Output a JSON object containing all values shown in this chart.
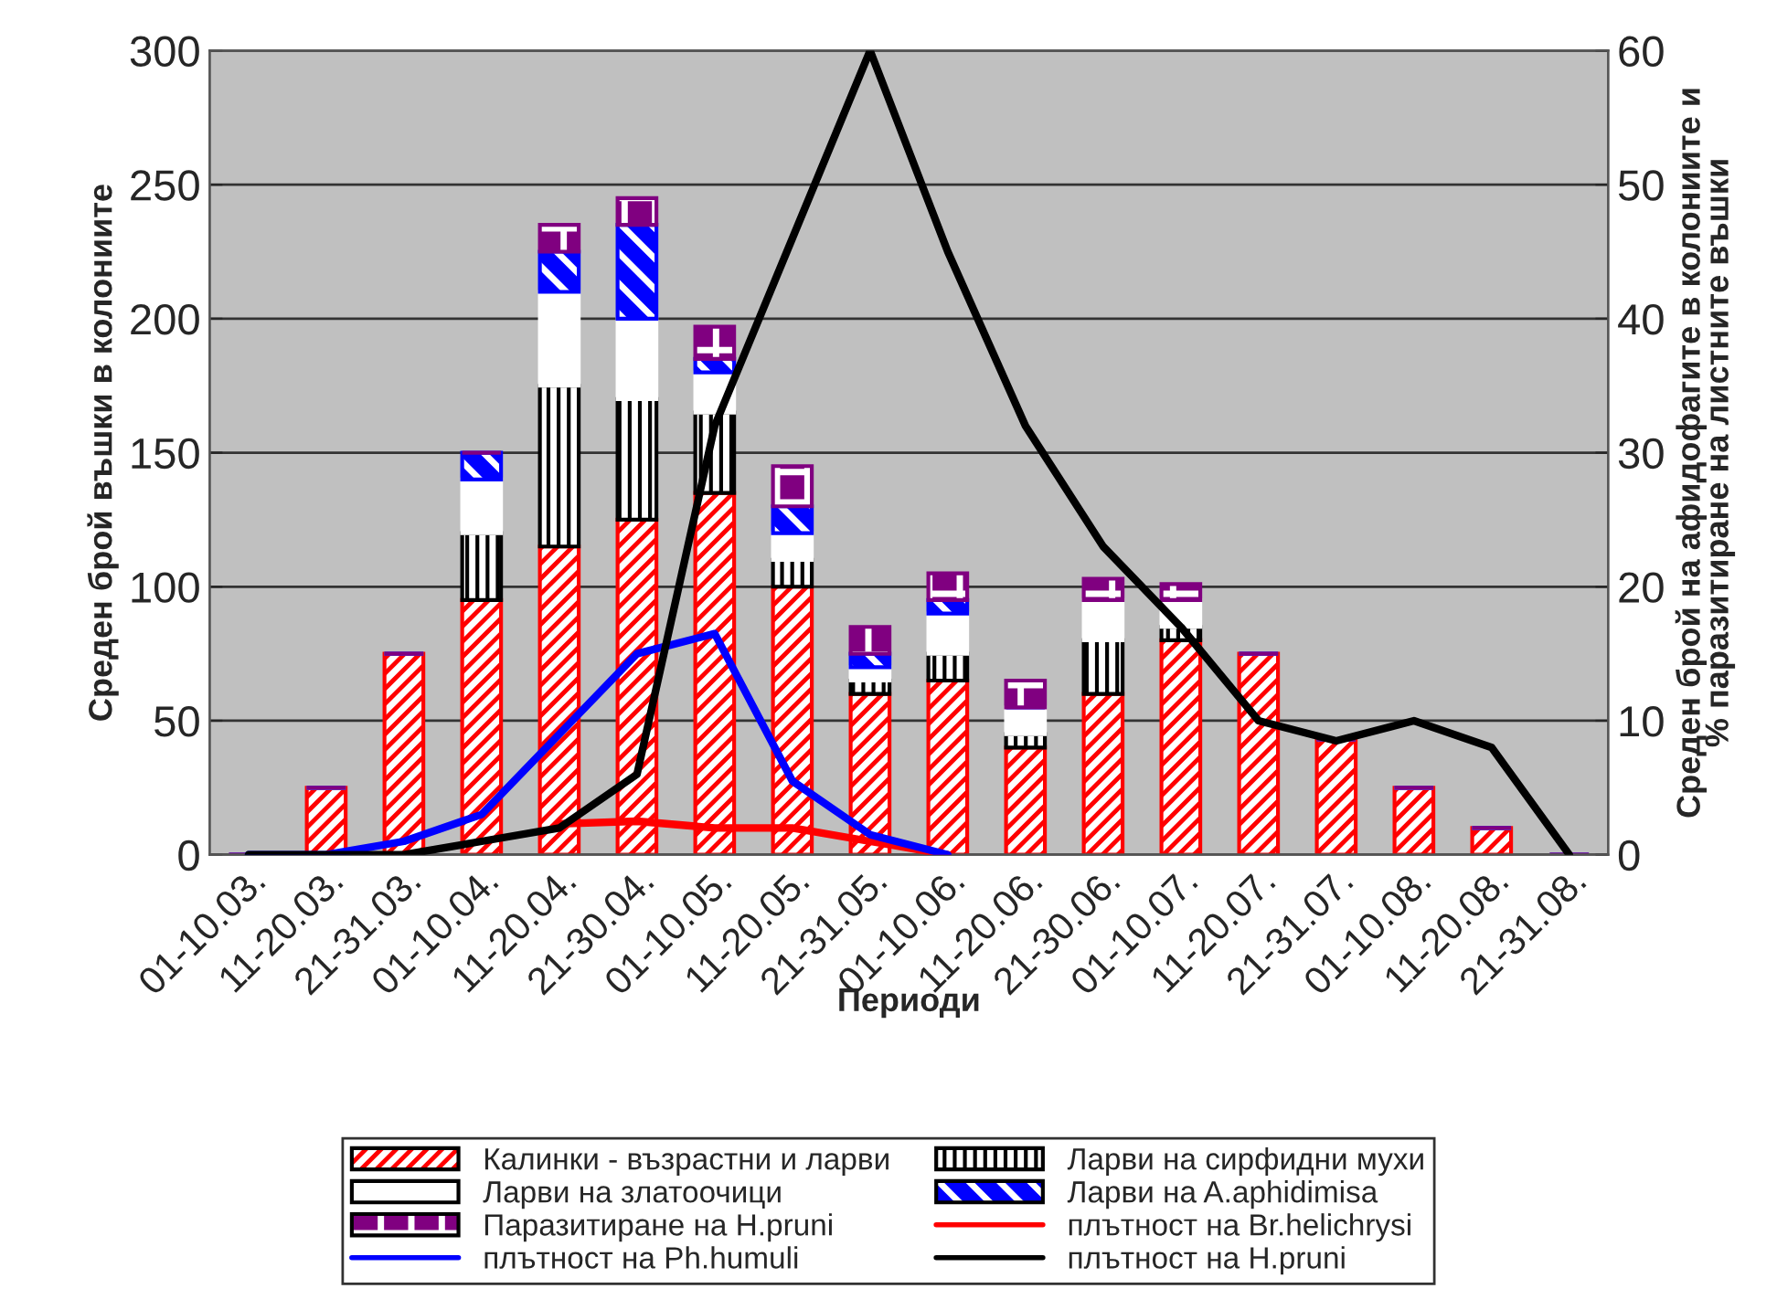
{
  "chart_data": {
    "type": "bar",
    "stacked": true,
    "xlabel": "Периоди",
    "ylabel": "Среден брой въшки в колониите",
    "y2label": "Среден брой на афидофагите в колониите и\n% паразитиране на листните въшки",
    "categories": [
      "01-10.03.",
      "11-20.03.",
      "21-31.03.",
      "01-10.04.",
      "11-20.04.",
      "21-30.04.",
      "01-10.05.",
      "11-20.05.",
      "21-31.05.",
      "01-10.06.",
      "11-20.06.",
      "21-30.06.",
      "01-10.07.",
      "11-20.07.",
      "21-31.07.",
      "01-10.08.",
      "11-20.08.",
      "21-31.08."
    ],
    "ylim": [
      0,
      300
    ],
    "yticks": [
      0,
      50,
      100,
      150,
      200,
      250,
      300
    ],
    "y2lim": [
      0,
      60
    ],
    "y2ticks": [
      0,
      10,
      20,
      30,
      40,
      50,
      60
    ],
    "grid": "y",
    "legend": "bottom",
    "series": [
      {
        "name": "Калинки - възрастни и ларви",
        "color": "#ff0000",
        "values": [
          0,
          25,
          75,
          95,
          115,
          125,
          135,
          100,
          60,
          65,
          40,
          60,
          80,
          75,
          43,
          25,
          10,
          0
        ]
      },
      {
        "name": "Ларви на сирфидни мухи",
        "color": "#000000",
        "values": [
          0,
          0,
          0,
          25,
          60,
          45,
          30,
          10,
          5,
          10,
          5,
          20,
          5,
          0,
          0,
          0,
          0,
          0
        ]
      },
      {
        "name": "Ларви на златоочици",
        "color": "#ffffff",
        "values": [
          0,
          0,
          0,
          20,
          35,
          30,
          15,
          10,
          5,
          15,
          10,
          15,
          10,
          0,
          0,
          0,
          0,
          0
        ]
      },
      {
        "name": "Ларви на A.aphidimisa",
        "color": "#0000ff",
        "values": [
          0,
          0,
          0,
          10,
          15,
          35,
          5,
          10,
          5,
          5,
          0,
          0,
          0,
          0,
          0,
          0,
          0,
          0
        ]
      },
      {
        "name": "Паразитиране на H.pruni",
        "color": "#800080",
        "values": [
          0,
          0,
          0,
          0,
          10,
          10,
          12,
          15,
          10,
          10,
          10,
          8,
          6,
          0,
          0,
          0,
          0,
          0
        ]
      },
      {
        "name": "плътност на Br.helichrysi",
        "type": "line",
        "axis": "y2",
        "color": "#ff0000",
        "values": [
          null,
          null,
          null,
          null,
          2.3,
          2.5,
          2,
          2,
          1,
          0,
          null,
          null,
          null,
          null,
          null,
          null,
          null,
          null
        ]
      },
      {
        "name": "плътност на Ph.humuli",
        "type": "line",
        "axis": "y2",
        "color": "#0000ff",
        "values": [
          0,
          0,
          1,
          3,
          9,
          15,
          16.5,
          5.5,
          1.5,
          0,
          null,
          null,
          null,
          null,
          null,
          null,
          null,
          null
        ]
      },
      {
        "name": "плътност на H.pruni",
        "type": "line",
        "axis": "y2",
        "color": "#000000",
        "values": [
          0,
          0,
          0,
          1,
          2,
          6,
          32,
          46,
          60,
          45,
          32,
          23,
          17,
          10,
          8.5,
          10,
          8,
          0
        ]
      }
    ]
  }
}
